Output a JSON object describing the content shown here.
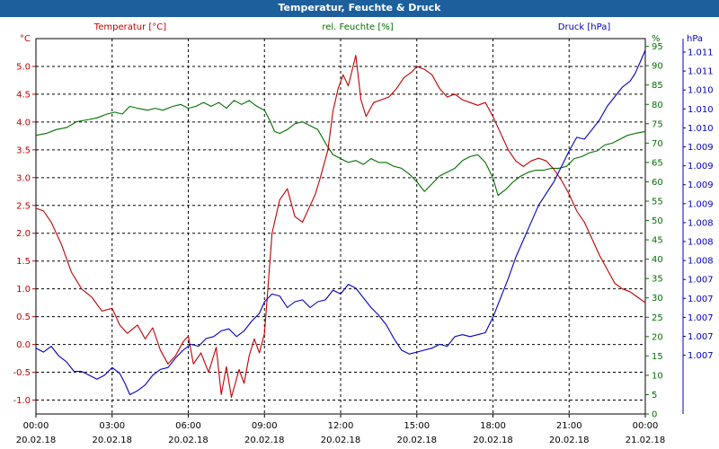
{
  "window": {
    "title": "Temperatur, Feuchte & Druck"
  },
  "chart_data": {
    "type": "line",
    "title": "Temperatur, Feuchte & Druck",
    "x": {
      "start": "20.02.18 00:00",
      "end": "21.02.18 00:00",
      "ticks": [
        {
          "time": "00:00",
          "date": "20.02.18"
        },
        {
          "time": "03:00",
          "date": "20.02.18"
        },
        {
          "time": "06:00",
          "date": "20.02.18"
        },
        {
          "time": "09:00",
          "date": "20.02.18"
        },
        {
          "time": "12:00",
          "date": "20.02.18"
        },
        {
          "time": "15:00",
          "date": "20.02.18"
        },
        {
          "time": "18:00",
          "date": "20.02.18"
        },
        {
          "time": "21:00",
          "date": "20.02.18"
        },
        {
          "time": "00:00",
          "date": "21.02.18"
        }
      ]
    },
    "grid": true,
    "series": [
      {
        "name": "Temperatur [°C]",
        "unit": "°C",
        "color": "#c00000",
        "axis": "left",
        "ylim": [
          -1.25,
          5.5
        ],
        "ticks": [
          "5.0",
          "4.5",
          "4.0",
          "3.5",
          "3.0",
          "2.5",
          "2.0",
          "1.5",
          "1.0",
          "0.5",
          "0.0",
          "-0.5",
          "-1.0"
        ],
        "points": [
          [
            0,
            2.45
          ],
          [
            0.3,
            2.4
          ],
          [
            0.6,
            2.2
          ],
          [
            1.0,
            1.8
          ],
          [
            1.4,
            1.3
          ],
          [
            1.8,
            1.0
          ],
          [
            2.2,
            0.85
          ],
          [
            2.6,
            0.6
          ],
          [
            3.0,
            0.65
          ],
          [
            3.3,
            0.35
          ],
          [
            3.6,
            0.2
          ],
          [
            4.0,
            0.35
          ],
          [
            4.3,
            0.1
          ],
          [
            4.6,
            0.3
          ],
          [
            4.9,
            -0.1
          ],
          [
            5.2,
            -0.35
          ],
          [
            5.5,
            -0.2
          ],
          [
            5.8,
            0.05
          ],
          [
            6.0,
            0.15
          ],
          [
            6.2,
            -0.35
          ],
          [
            6.5,
            -0.15
          ],
          [
            6.8,
            -0.5
          ],
          [
            7.1,
            -0.05
          ],
          [
            7.3,
            -0.9
          ],
          [
            7.5,
            -0.4
          ],
          [
            7.7,
            -0.95
          ],
          [
            8.0,
            -0.45
          ],
          [
            8.2,
            -0.7
          ],
          [
            8.4,
            -0.2
          ],
          [
            8.6,
            0.1
          ],
          [
            8.8,
            -0.15
          ],
          [
            9.0,
            0.2
          ],
          [
            9.3,
            2.0
          ],
          [
            9.6,
            2.6
          ],
          [
            9.9,
            2.8
          ],
          [
            10.2,
            2.3
          ],
          [
            10.5,
            2.2
          ],
          [
            10.8,
            2.5
          ],
          [
            11.0,
            2.7
          ],
          [
            11.2,
            3.0
          ],
          [
            11.5,
            3.5
          ],
          [
            11.7,
            4.2
          ],
          [
            11.9,
            4.6
          ],
          [
            12.1,
            4.85
          ],
          [
            12.3,
            4.65
          ],
          [
            12.6,
            5.2
          ],
          [
            12.8,
            4.4
          ],
          [
            13.0,
            4.1
          ],
          [
            13.3,
            4.35
          ],
          [
            13.6,
            4.4
          ],
          [
            13.9,
            4.45
          ],
          [
            14.2,
            4.6
          ],
          [
            14.5,
            4.8
          ],
          [
            14.8,
            4.9
          ],
          [
            15.0,
            5.0
          ],
          [
            15.3,
            4.95
          ],
          [
            15.6,
            4.85
          ],
          [
            15.9,
            4.6
          ],
          [
            16.2,
            4.45
          ],
          [
            16.5,
            4.5
          ],
          [
            16.8,
            4.4
          ],
          [
            17.1,
            4.35
          ],
          [
            17.4,
            4.3
          ],
          [
            17.7,
            4.35
          ],
          [
            18.0,
            4.1
          ],
          [
            18.3,
            3.8
          ],
          [
            18.6,
            3.5
          ],
          [
            18.9,
            3.3
          ],
          [
            19.2,
            3.2
          ],
          [
            19.5,
            3.3
          ],
          [
            19.8,
            3.35
          ],
          [
            20.1,
            3.3
          ],
          [
            20.4,
            3.15
          ],
          [
            20.7,
            2.95
          ],
          [
            21.0,
            2.7
          ],
          [
            21.3,
            2.4
          ],
          [
            21.6,
            2.2
          ],
          [
            21.9,
            1.9
          ],
          [
            22.2,
            1.6
          ],
          [
            22.5,
            1.35
          ],
          [
            22.8,
            1.1
          ],
          [
            23.1,
            1.0
          ],
          [
            23.4,
            0.95
          ],
          [
            23.7,
            0.85
          ],
          [
            24.0,
            0.75
          ]
        ]
      },
      {
        "name": "rel. Feuchte [%]",
        "unit": "%",
        "color": "#007000",
        "axis": "right",
        "ylim": [
          0,
          97
        ],
        "ticks": [
          "95",
          "90",
          "85",
          "80",
          "75",
          "70",
          "65",
          "60",
          "55",
          "50",
          "45",
          "40",
          "35",
          "30",
          "25",
          "20",
          "15",
          "10",
          "5",
          "0"
        ],
        "points": [
          [
            0,
            72
          ],
          [
            0.4,
            72.5
          ],
          [
            0.8,
            73.5
          ],
          [
            1.2,
            74
          ],
          [
            1.6,
            75.5
          ],
          [
            2.0,
            76
          ],
          [
            2.4,
            76.5
          ],
          [
            2.8,
            77.5
          ],
          [
            3.1,
            78
          ],
          [
            3.4,
            77.5
          ],
          [
            3.7,
            79.5
          ],
          [
            4.0,
            79
          ],
          [
            4.4,
            78.5
          ],
          [
            4.7,
            79
          ],
          [
            5.0,
            78.5
          ],
          [
            5.4,
            79.5
          ],
          [
            5.7,
            80
          ],
          [
            6.0,
            79
          ],
          [
            6.3,
            79.5
          ],
          [
            6.6,
            80.5
          ],
          [
            6.9,
            79.5
          ],
          [
            7.2,
            80.5
          ],
          [
            7.5,
            79
          ],
          [
            7.8,
            81
          ],
          [
            8.1,
            80
          ],
          [
            8.4,
            81
          ],
          [
            8.7,
            79.5
          ],
          [
            9.0,
            78.5
          ],
          [
            9.2,
            76
          ],
          [
            9.4,
            73
          ],
          [
            9.6,
            72.5
          ],
          [
            9.9,
            73.5
          ],
          [
            10.2,
            75
          ],
          [
            10.5,
            75.5
          ],
          [
            10.8,
            74.5
          ],
          [
            11.1,
            73.5
          ],
          [
            11.4,
            70
          ],
          [
            11.7,
            67
          ],
          [
            12.0,
            66
          ],
          [
            12.3,
            65
          ],
          [
            12.6,
            65.5
          ],
          [
            12.9,
            64.5
          ],
          [
            13.2,
            66
          ],
          [
            13.5,
            65
          ],
          [
            13.8,
            65
          ],
          [
            14.1,
            64
          ],
          [
            14.4,
            63.5
          ],
          [
            14.7,
            62
          ],
          [
            15.0,
            60
          ],
          [
            15.3,
            57.5
          ],
          [
            15.6,
            59.5
          ],
          [
            15.9,
            61.5
          ],
          [
            16.2,
            62.5
          ],
          [
            16.5,
            63.5
          ],
          [
            16.8,
            65.5
          ],
          [
            17.1,
            66.5
          ],
          [
            17.4,
            67
          ],
          [
            17.7,
            65
          ],
          [
            18.0,
            61
          ],
          [
            18.2,
            56.5
          ],
          [
            18.5,
            58
          ],
          [
            18.8,
            60
          ],
          [
            19.1,
            61.5
          ],
          [
            19.4,
            62.5
          ],
          [
            19.7,
            63
          ],
          [
            20.0,
            63
          ],
          [
            20.3,
            63.5
          ],
          [
            20.6,
            63.5
          ],
          [
            20.9,
            64
          ],
          [
            21.2,
            66
          ],
          [
            21.5,
            66.5
          ],
          [
            21.8,
            67.5
          ],
          [
            22.1,
            68
          ],
          [
            22.4,
            69.5
          ],
          [
            22.7,
            70
          ],
          [
            23.0,
            71
          ],
          [
            23.3,
            72
          ],
          [
            23.6,
            72.5
          ],
          [
            24.0,
            73
          ]
        ]
      },
      {
        "name": "Druck [hPa]",
        "unit": "hPa",
        "color": "#0000c0",
        "axis": "right2",
        "ylim": [
          0,
          97
        ],
        "ticks": [
          "1.011",
          "1.011",
          "1.010",
          "1.010",
          "1.010",
          "1.009",
          "1.009",
          "1.009",
          "1.009",
          "1.008",
          "1.008",
          "1.008",
          "1.007",
          "1.007",
          "1.007",
          "1.007",
          "1.007"
        ],
        "points": [
          [
            0,
            17
          ],
          [
            0.3,
            16
          ],
          [
            0.6,
            17.5
          ],
          [
            0.9,
            15
          ],
          [
            1.2,
            13.5
          ],
          [
            1.5,
            11
          ],
          [
            1.8,
            11
          ],
          [
            2.1,
            10
          ],
          [
            2.4,
            9
          ],
          [
            2.7,
            10
          ],
          [
            3.0,
            12
          ],
          [
            3.3,
            10.5
          ],
          [
            3.5,
            8
          ],
          [
            3.7,
            5
          ],
          [
            4.0,
            6
          ],
          [
            4.3,
            7.5
          ],
          [
            4.6,
            10
          ],
          [
            4.9,
            11.5
          ],
          [
            5.2,
            12
          ],
          [
            5.5,
            14.5
          ],
          [
            5.8,
            16.5
          ],
          [
            6.1,
            18
          ],
          [
            6.4,
            17.5
          ],
          [
            6.7,
            19.5
          ],
          [
            7.0,
            20
          ],
          [
            7.3,
            21.5
          ],
          [
            7.6,
            22
          ],
          [
            7.9,
            20
          ],
          [
            8.2,
            21.5
          ],
          [
            8.5,
            24
          ],
          [
            8.8,
            26
          ],
          [
            9.0,
            29
          ],
          [
            9.3,
            31
          ],
          [
            9.6,
            30.5
          ],
          [
            9.9,
            27.5
          ],
          [
            10.2,
            29
          ],
          [
            10.5,
            29.5
          ],
          [
            10.8,
            27.5
          ],
          [
            11.1,
            29
          ],
          [
            11.4,
            29.5
          ],
          [
            11.7,
            32
          ],
          [
            12.0,
            31
          ],
          [
            12.3,
            33.5
          ],
          [
            12.6,
            32.5
          ],
          [
            12.9,
            30
          ],
          [
            13.2,
            27.5
          ],
          [
            13.5,
            25.5
          ],
          [
            13.8,
            23
          ],
          [
            14.1,
            19.5
          ],
          [
            14.4,
            16.5
          ],
          [
            14.7,
            15.5
          ],
          [
            15.0,
            16
          ],
          [
            15.3,
            16.5
          ],
          [
            15.6,
            17
          ],
          [
            15.9,
            18
          ],
          [
            16.2,
            17.5
          ],
          [
            16.5,
            20
          ],
          [
            16.8,
            20.5
          ],
          [
            17.1,
            20
          ],
          [
            17.4,
            20.5
          ],
          [
            17.7,
            21
          ],
          [
            18.0,
            25
          ],
          [
            18.3,
            30
          ],
          [
            18.6,
            35
          ],
          [
            18.9,
            40.5
          ],
          [
            19.2,
            45
          ],
          [
            19.5,
            49.5
          ],
          [
            19.8,
            54
          ],
          [
            20.1,
            57
          ],
          [
            20.4,
            60
          ],
          [
            20.7,
            64
          ],
          [
            21.0,
            68
          ],
          [
            21.3,
            71.5
          ],
          [
            21.6,
            71
          ],
          [
            21.9,
            73.5
          ],
          [
            22.2,
            76
          ],
          [
            22.5,
            79.5
          ],
          [
            22.8,
            82
          ],
          [
            23.1,
            84.5
          ],
          [
            23.4,
            86
          ],
          [
            23.6,
            88
          ],
          [
            23.8,
            91
          ],
          [
            24.0,
            94
          ]
        ]
      }
    ]
  }
}
